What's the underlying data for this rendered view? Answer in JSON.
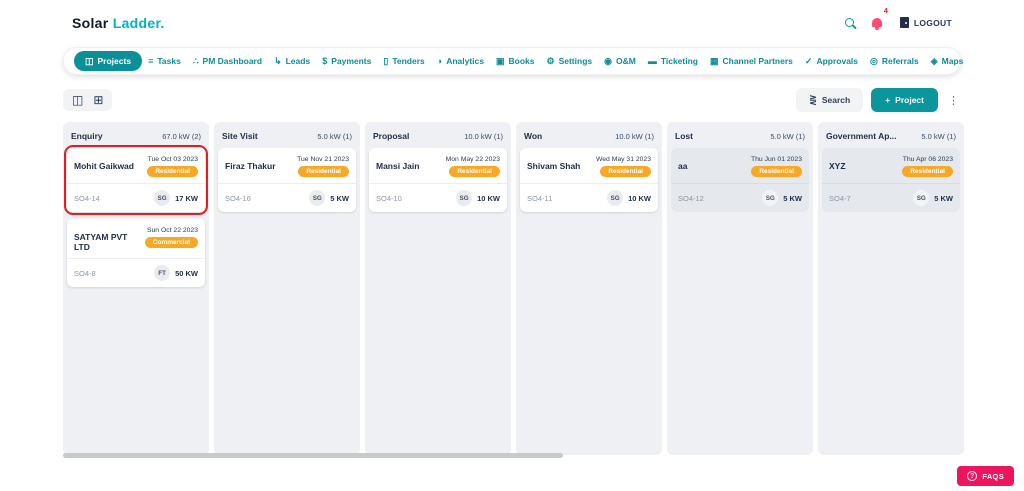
{
  "header": {
    "logo_part1": "Solar",
    "logo_part2": "Ladder.",
    "notification_count": "4",
    "logout_label": "LOGOUT"
  },
  "nav": {
    "items": [
      {
        "label": "Projects",
        "slug": "projects",
        "icon": "kanban-icon",
        "active": true
      },
      {
        "label": "Tasks",
        "slug": "tasks",
        "icon": "tasks-icon",
        "active": false
      },
      {
        "label": "PM Dashboard",
        "slug": "pm-dashboard",
        "icon": "dashboard-icon",
        "active": false
      },
      {
        "label": "Leads",
        "slug": "leads",
        "icon": "leads-icon",
        "active": false
      },
      {
        "label": "Payments",
        "slug": "payments",
        "icon": "payments-icon",
        "active": false
      },
      {
        "label": "Tenders",
        "slug": "tenders",
        "icon": "tenders-icon",
        "active": false
      },
      {
        "label": "Analytics",
        "slug": "analytics",
        "icon": "analytics-icon",
        "active": false
      },
      {
        "label": "Books",
        "slug": "books",
        "icon": "books-icon",
        "active": false
      },
      {
        "label": "Settings",
        "slug": "settings",
        "icon": "settings-icon",
        "active": false
      },
      {
        "label": "O&M",
        "slug": "om",
        "icon": "thumbs-up-icon",
        "active": false
      },
      {
        "label": "Ticketing",
        "slug": "ticketing",
        "icon": "ticket-icon",
        "active": false
      },
      {
        "label": "Channel Partners",
        "slug": "channel-partners",
        "icon": "partners-icon",
        "active": false
      },
      {
        "label": "Approvals",
        "slug": "approvals",
        "icon": "approvals-icon",
        "active": false
      },
      {
        "label": "Referrals",
        "slug": "referrals",
        "icon": "referrals-icon",
        "active": false
      },
      {
        "label": "Maps",
        "slug": "maps",
        "icon": "map-pin-icon",
        "active": false
      }
    ]
  },
  "toolbar": {
    "search_label": "Search",
    "project_plus": "+",
    "project_label": "Project"
  },
  "board": {
    "columns": [
      {
        "title": "Enquiry",
        "summary": "67.0 kW (2)",
        "cards": [
          {
            "name": "Mohit Gaikwad",
            "date": "Tue Oct 03 2023",
            "badge": "Residential",
            "id": "SO4-14",
            "avatar": "SG",
            "capacity": "17 KW",
            "highlighted": true,
            "muted": false
          },
          {
            "name": "SATYAM PVT LTD",
            "date": "Sun Oct 22 2023",
            "badge": "Commercial",
            "id": "SO4-8",
            "avatar": "FT",
            "capacity": "50 KW",
            "highlighted": false,
            "muted": false
          }
        ]
      },
      {
        "title": "Site Visit",
        "summary": "5.0 kW (1)",
        "cards": [
          {
            "name": "Firaz Thakur",
            "date": "Tue Nov 21 2023",
            "badge": "Residential",
            "id": "SO4-16",
            "avatar": "SG",
            "capacity": "5 KW",
            "highlighted": false,
            "muted": false
          }
        ]
      },
      {
        "title": "Proposal",
        "summary": "10.0 kW (1)",
        "cards": [
          {
            "name": "Mansi Jain",
            "date": "Mon May 22 2023",
            "badge": "Residential",
            "id": "SO4-10",
            "avatar": "SG",
            "capacity": "10 KW",
            "highlighted": false,
            "muted": false
          }
        ]
      },
      {
        "title": "Won",
        "summary": "10.0 kW (1)",
        "cards": [
          {
            "name": "Shivam Shah",
            "date": "Wed May 31 2023",
            "badge": "Residential",
            "id": "SO4-11",
            "avatar": "SG",
            "capacity": "10 KW",
            "highlighted": false,
            "muted": false
          }
        ]
      },
      {
        "title": "Lost",
        "summary": "5.0 kW (1)",
        "cards": [
          {
            "name": "aa",
            "date": "Thu Jun 01 2023",
            "badge": "Residential",
            "id": "SO4-12",
            "avatar": "SG",
            "capacity": "5 KW",
            "highlighted": false,
            "muted": true
          }
        ]
      },
      {
        "title": "Government Ap...",
        "summary": "5.0 kW (1)",
        "cards": [
          {
            "name": "XYZ",
            "date": "Thu Apr 06 2023",
            "badge": "Residential",
            "id": "SO4-7",
            "avatar": "SG",
            "capacity": "5 KW",
            "highlighted": false,
            "muted": true
          }
        ]
      }
    ]
  },
  "faq": {
    "label": "FAQS",
    "icon": "question-circle-icon"
  },
  "colors": {
    "accent_teal": "#0b8f99",
    "logo_cyan": "#00b2c3",
    "badge_orange": "#f9a826",
    "highlight_red": "#dd1f26",
    "faq_pink": "#ee1560",
    "bell_pink": "#ff4a74",
    "column_bg": "#eef0f3",
    "muted_card_bg": "#e5e8ec"
  }
}
